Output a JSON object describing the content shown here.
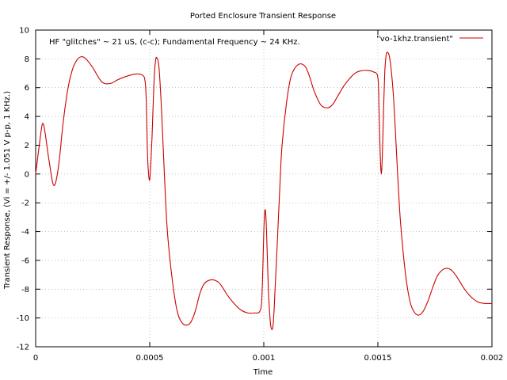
{
  "chart_data": {
    "type": "line",
    "title": "Ported Enclosure Transient Response",
    "xlabel": "Time",
    "ylabel": "Transient Response, (Vi = +/- 1.051 V p-p, 1 KHz.)",
    "annotation": "HF \"glitches\" ~ 21 uS, (c-c); Fundamental Frequency ~ 24 KHz.",
    "xlim": [
      0,
      0.002
    ],
    "ylim": [
      -12,
      10
    ],
    "xticks": [
      0,
      0.0005,
      0.001,
      0.0015,
      0.002
    ],
    "xtick_labels": [
      "0",
      "0.0005",
      "0.001",
      "0.0015",
      "0.002"
    ],
    "yticks": [
      -12,
      -10,
      -8,
      -6,
      -4,
      -2,
      0,
      2,
      4,
      6,
      8,
      10
    ],
    "ytick_labels": [
      "-12",
      "-10",
      "-8",
      "-6",
      "-4",
      "-2",
      "0",
      "2",
      "4",
      "6",
      "8",
      "10"
    ],
    "grid": true,
    "legend_position": "top-right",
    "series": [
      {
        "name": "\"vo-1khz.transient\"",
        "color": "#cc0000",
        "x": [
          0,
          2e-05,
          3e-05,
          4e-05,
          6e-05,
          8e-05,
          0.0001,
          0.00012,
          0.00014,
          0.00016,
          0.00018,
          0.0002,
          0.00022,
          0.00025,
          0.00028,
          0.0003,
          0.00033,
          0.00036,
          0.0004,
          0.00044,
          0.00047,
          0.00048,
          0.000485,
          0.00049,
          0.000495,
          0.0005,
          0.000505,
          0.00051,
          0.000515,
          0.00052,
          0.000525,
          0.00053,
          0.00054,
          0.00055,
          0.00056,
          0.00057,
          0.00058,
          0.0006,
          0.00062,
          0.00064,
          0.00066,
          0.00068,
          0.0007,
          0.00072,
          0.00074,
          0.00077,
          0.0008,
          0.00082,
          0.00084,
          0.00087,
          0.0009,
          0.00093,
          0.00096,
          0.00098,
          0.00099,
          0.000995,
          0.001,
          0.001005,
          0.00101,
          0.001015,
          0.00102,
          0.001025,
          0.00103,
          0.001035,
          0.00104,
          0.001045,
          0.00105,
          0.00106,
          0.00107,
          0.00108,
          0.0011,
          0.00112,
          0.00115,
          0.00118,
          0.0012,
          0.00122,
          0.00125,
          0.00128,
          0.0013,
          0.00132,
          0.00135,
          0.00138,
          0.0014,
          0.00142,
          0.00145,
          0.00148,
          0.0015,
          0.001505,
          0.00151,
          0.001515,
          0.00152,
          0.001525,
          0.00153,
          0.001535,
          0.00154,
          0.00155,
          0.00156,
          0.00157,
          0.00158,
          0.00159,
          0.0016,
          0.00162,
          0.00164,
          0.00166,
          0.00168,
          0.0017,
          0.00172,
          0.00174,
          0.00176,
          0.00178,
          0.0018,
          0.00182,
          0.00184,
          0.00186,
          0.00188,
          0.0019,
          0.00192,
          0.00194,
          0.00196,
          0.00198,
          0.002
        ],
        "y": [
          0,
          2.5,
          3.5,
          3.0,
          0.8,
          -0.8,
          0.5,
          3.5,
          5.8,
          7.2,
          7.9,
          8.15,
          8.0,
          7.4,
          6.6,
          6.3,
          6.3,
          6.55,
          6.8,
          6.95,
          6.85,
          6.4,
          5.0,
          1.5,
          0.0,
          -0.4,
          0.8,
          2.5,
          4.8,
          6.8,
          7.8,
          8.1,
          7.5,
          5.0,
          1.5,
          -2.0,
          -4.5,
          -7.5,
          -9.5,
          -10.3,
          -10.5,
          -10.3,
          -9.5,
          -8.3,
          -7.6,
          -7.35,
          -7.5,
          -7.9,
          -8.4,
          -9.0,
          -9.45,
          -9.65,
          -9.65,
          -9.6,
          -9.0,
          -7.0,
          -4.0,
          -2.5,
          -3.2,
          -5.5,
          -8.0,
          -9.5,
          -10.5,
          -10.8,
          -10.6,
          -9.5,
          -7.8,
          -4.5,
          -1.0,
          2.0,
          5.0,
          6.8,
          7.6,
          7.5,
          6.8,
          5.8,
          4.8,
          4.6,
          4.8,
          5.3,
          6.1,
          6.7,
          7.0,
          7.15,
          7.2,
          7.1,
          6.7,
          4.5,
          1.5,
          0.0,
          1.5,
          4.5,
          7.0,
          8.1,
          8.45,
          8.2,
          7.0,
          5.0,
          2.0,
          -1.0,
          -3.5,
          -6.8,
          -8.8,
          -9.6,
          -9.8,
          -9.5,
          -8.8,
          -7.9,
          -7.1,
          -6.7,
          -6.55,
          -6.65,
          -7.0,
          -7.5,
          -8.0,
          -8.4,
          -8.7,
          -8.9,
          -8.98,
          -9.0,
          -9.0
        ]
      }
    ]
  }
}
